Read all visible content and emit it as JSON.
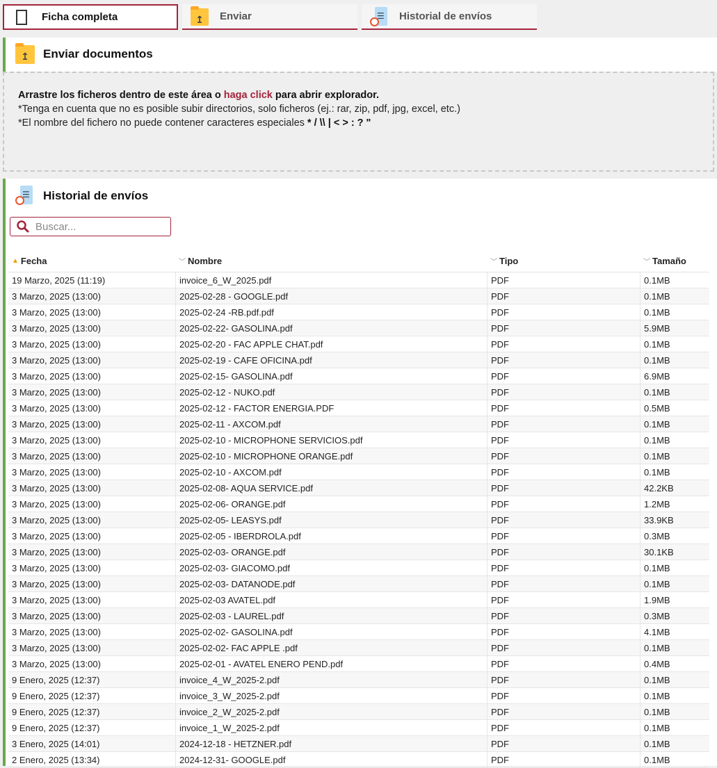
{
  "tabs": [
    {
      "label": "Ficha completa",
      "icon": "fullscreen-icon",
      "active": true
    },
    {
      "label": "Enviar",
      "icon": "folder-upload-icon"
    },
    {
      "label": "Historial de envíos",
      "icon": "history-document-icon"
    }
  ],
  "upload": {
    "title": "Enviar documentos",
    "line1_pre": "Arrastre los ficheros dentro de este área o ",
    "line1_link": "haga click",
    "line1_post": " para abrir explorador.",
    "line2": "*Tenga en cuenta que no es posible subir directorios, solo ficheros (ej.: rar, zip, pdf, jpg, excel, etc.)",
    "line3_pre": "*El nombre del fichero no puede contener caracteres especiales ",
    "line3_chars": "* / \\\\ | < > : ? \""
  },
  "history": {
    "title": "Historial de envíos",
    "search_placeholder": "Buscar...",
    "columns": [
      "Fecha",
      "Nombre",
      "Tipo",
      "Tamaño"
    ],
    "sort": {
      "column": "Fecha",
      "direction": "asc"
    },
    "rows": [
      [
        "19 Marzo, 2025 (11:19)",
        "invoice_6_W_2025.pdf",
        "PDF",
        "0.1MB"
      ],
      [
        "3 Marzo, 2025 (13:00)",
        "2025-02-28 - GOOGLE.pdf",
        "PDF",
        "0.1MB"
      ],
      [
        "3 Marzo, 2025 (13:00)",
        "2025-02-24 -RB.pdf.pdf",
        "PDF",
        "0.1MB"
      ],
      [
        "3 Marzo, 2025 (13:00)",
        "2025-02-22- GASOLINA.pdf",
        "PDF",
        "5.9MB"
      ],
      [
        "3 Marzo, 2025 (13:00)",
        "2025-02-20 - FAC APPLE CHAT.pdf",
        "PDF",
        "0.1MB"
      ],
      [
        "3 Marzo, 2025 (13:00)",
        "2025-02-19 - CAFE OFICINA.pdf",
        "PDF",
        "0.1MB"
      ],
      [
        "3 Marzo, 2025 (13:00)",
        "2025-02-15- GASOLINA.pdf",
        "PDF",
        "6.9MB"
      ],
      [
        "3 Marzo, 2025 (13:00)",
        "2025-02-12 - NUKO.pdf",
        "PDF",
        "0.1MB"
      ],
      [
        "3 Marzo, 2025 (13:00)",
        "2025-02-12 - FACTOR ENERGIA.PDF",
        "PDF",
        "0.5MB"
      ],
      [
        "3 Marzo, 2025 (13:00)",
        "2025-02-11 - AXCOM.pdf",
        "PDF",
        "0.1MB"
      ],
      [
        "3 Marzo, 2025 (13:00)",
        "2025-02-10 - MICROPHONE SERVICIOS.pdf",
        "PDF",
        "0.1MB"
      ],
      [
        "3 Marzo, 2025 (13:00)",
        "2025-02-10 - MICROPHONE ORANGE.pdf",
        "PDF",
        "0.1MB"
      ],
      [
        "3 Marzo, 2025 (13:00)",
        "2025-02-10 - AXCOM.pdf",
        "PDF",
        "0.1MB"
      ],
      [
        "3 Marzo, 2025 (13:00)",
        "2025-02-08- AQUA SERVICE.pdf",
        "PDF",
        "42.2KB"
      ],
      [
        "3 Marzo, 2025 (13:00)",
        "2025-02-06- ORANGE.pdf",
        "PDF",
        "1.2MB"
      ],
      [
        "3 Marzo, 2025 (13:00)",
        "2025-02-05- LEASYS.pdf",
        "PDF",
        "33.9KB"
      ],
      [
        "3 Marzo, 2025 (13:00)",
        "2025-02-05 - IBERDROLA.pdf",
        "PDF",
        "0.3MB"
      ],
      [
        "3 Marzo, 2025 (13:00)",
        "2025-02-03- ORANGE.pdf",
        "PDF",
        "30.1KB"
      ],
      [
        "3 Marzo, 2025 (13:00)",
        "2025-02-03- GIACOMO.pdf",
        "PDF",
        "0.1MB"
      ],
      [
        "3 Marzo, 2025 (13:00)",
        "2025-02-03- DATANODE.pdf",
        "PDF",
        "0.1MB"
      ],
      [
        "3 Marzo, 2025 (13:00)",
        "2025-02-03 AVATEL.pdf",
        "PDF",
        "1.9MB"
      ],
      [
        "3 Marzo, 2025 (13:00)",
        "2025-02-03 - LAUREL.pdf",
        "PDF",
        "0.3MB"
      ],
      [
        "3 Marzo, 2025 (13:00)",
        "2025-02-02- GASOLINA.pdf",
        "PDF",
        "4.1MB"
      ],
      [
        "3 Marzo, 2025 (13:00)",
        "2025-02-02- FAC APPLE .pdf",
        "PDF",
        "0.1MB"
      ],
      [
        "3 Marzo, 2025 (13:00)",
        "2025-02-01 - AVATEL ENERO PEND.pdf",
        "PDF",
        "0.4MB"
      ],
      [
        "9 Enero, 2025 (12:37)",
        "invoice_4_W_2025-2.pdf",
        "PDF",
        "0.1MB"
      ],
      [
        "9 Enero, 2025 (12:37)",
        "invoice_3_W_2025-2.pdf",
        "PDF",
        "0.1MB"
      ],
      [
        "9 Enero, 2025 (12:37)",
        "invoice_2_W_2025-2.pdf",
        "PDF",
        "0.1MB"
      ],
      [
        "9 Enero, 2025 (12:37)",
        "invoice_1_W_2025-2.pdf",
        "PDF",
        "0.1MB"
      ],
      [
        "3 Enero, 2025 (14:01)",
        "2024-12-18 - HETZNER.pdf",
        "PDF",
        "0.1MB"
      ],
      [
        "2 Enero, 2025 (13:34)",
        "2024-12-31- GOOGLE.pdf",
        "PDF",
        "0.1MB"
      ]
    ]
  },
  "colors": {
    "accent": "#a3243b",
    "section_bar": "#6aa84f",
    "sort_active": "#f0a000"
  }
}
